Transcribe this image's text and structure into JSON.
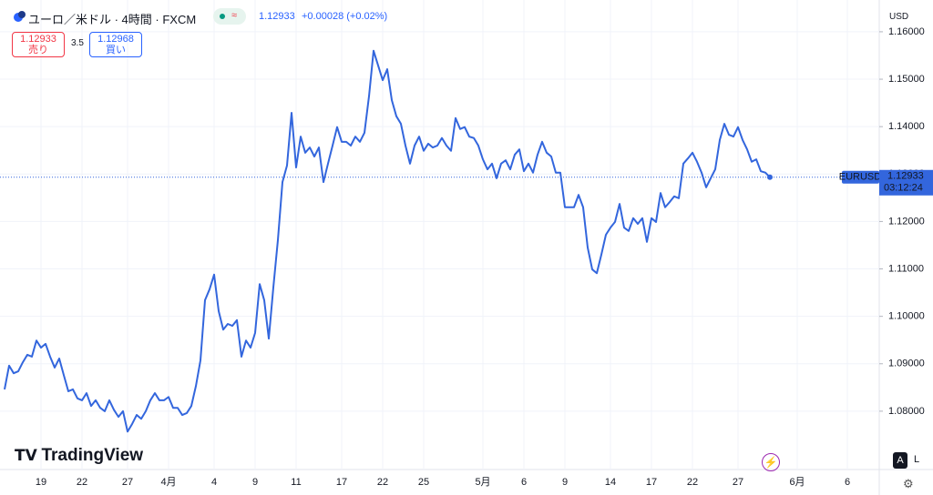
{
  "chart_data": {
    "type": "line",
    "title": "ユーロ／米ドル · 4時間 · FXCM",
    "change": "+0.00028 (+0.02%)",
    "sell_label": "売り",
    "buy_label": "買い",
    "spread": "3.5",
    "ask": 1.12968,
    "currency": "USD",
    "symbol": "EURUSD",
    "countdown": "03:12:24",
    "brand": "TradingView",
    "auto_button": "A",
    "log_button": "L",
    "color": "#3366dd",
    "ylim": [
      1.0677,
      1.1667
    ],
    "yticks": [
      {
        "value": 1.08,
        "label": "1.08000"
      },
      {
        "value": 1.09,
        "label": "1.09000"
      },
      {
        "value": 1.1,
        "label": "1.10000"
      },
      {
        "value": 1.11,
        "label": "1.11000"
      },
      {
        "value": 1.12,
        "label": "1.12000"
      },
      {
        "value": 1.13,
        "label": "1.13000"
      },
      {
        "value": 1.14,
        "label": "1.14000"
      },
      {
        "value": 1.15,
        "label": "1.15000"
      },
      {
        "value": 1.16,
        "label": "1.16000"
      }
    ],
    "grid": true,
    "categories": [
      null,
      null,
      null,
      null,
      null,
      null,
      null,
      null,
      "19",
      null,
      null,
      null,
      null,
      null,
      null,
      null,
      null,
      "22",
      null,
      null,
      null,
      null,
      null,
      null,
      null,
      null,
      null,
      "27",
      null,
      null,
      null,
      null,
      null,
      null,
      null,
      null,
      "4月",
      null,
      null,
      null,
      null,
      null,
      null,
      null,
      null,
      null,
      "4",
      null,
      null,
      null,
      null,
      null,
      null,
      null,
      null,
      "9",
      null,
      null,
      null,
      null,
      null,
      null,
      null,
      null,
      "11",
      null,
      null,
      null,
      null,
      null,
      null,
      null,
      null,
      null,
      "17",
      null,
      null,
      null,
      null,
      null,
      null,
      null,
      null,
      "22",
      null,
      null,
      null,
      null,
      null,
      null,
      null,
      null,
      "25",
      null,
      null,
      null,
      null,
      null,
      null,
      null,
      null,
      null,
      null,
      null,
      null,
      "5月",
      null,
      null,
      null,
      null,
      null,
      null,
      null,
      null,
      "6",
      null,
      null,
      null,
      null,
      null,
      null,
      null,
      null,
      "9",
      null,
      null,
      null,
      null,
      null,
      null,
      null,
      null,
      null,
      "14",
      null,
      null,
      null,
      null,
      null,
      null,
      null,
      null,
      "17",
      null,
      null,
      null,
      null,
      null,
      null,
      null,
      null,
      "22",
      null,
      null,
      null,
      null,
      null,
      null,
      null,
      null,
      null,
      "27",
      null,
      null,
      null,
      null,
      null,
      null,
      null,
      null,
      null,
      null,
      null,
      null,
      "6月",
      null,
      null,
      null,
      null,
      null,
      null,
      null,
      null,
      null,
      null,
      "6",
      null,
      null,
      null,
      null,
      null,
      null,
      null
    ],
    "values": [
      1.0846,
      1.0896,
      1.088,
      1.0884,
      1.0903,
      1.0919,
      1.0915,
      1.0949,
      1.0934,
      1.0942,
      1.0915,
      1.0892,
      1.0911,
      1.0876,
      1.0842,
      1.0846,
      1.0827,
      1.0823,
      1.0838,
      1.0811,
      1.0823,
      1.0807,
      1.08,
      1.0823,
      1.0803,
      1.0788,
      1.08,
      1.0757,
      1.0773,
      1.0792,
      1.0784,
      1.08,
      1.0823,
      1.0838,
      1.0823,
      1.0823,
      1.083,
      1.0807,
      1.0807,
      1.0792,
      1.0796,
      1.0811,
      1.0853,
      1.0907,
      1.1034,
      1.1057,
      1.1088,
      1.1011,
      1.0972,
      1.0984,
      1.098,
      1.0992,
      1.0915,
      1.0949,
      1.0934,
      1.0965,
      1.1068,
      1.1034,
      1.0953,
      1.1061,
      1.1161,
      1.1283,
      1.1318,
      1.1429,
      1.1314,
      1.1379,
      1.1345,
      1.1356,
      1.1337,
      1.1356,
      1.1283,
      1.1322,
      1.136,
      1.1399,
      1.1368,
      1.1368,
      1.136,
      1.1379,
      1.1368,
      1.1387,
      1.1464,
      1.156,
      1.1529,
      1.1498,
      1.1521,
      1.1456,
      1.1422,
      1.1406,
      1.136,
      1.1322,
      1.136,
      1.1379,
      1.1349,
      1.1364,
      1.1356,
      1.136,
      1.1376,
      1.136,
      1.1349,
      1.1418,
      1.1395,
      1.1399,
      1.1379,
      1.1376,
      1.136,
      1.1331,
      1.131,
      1.1322,
      1.1291,
      1.1322,
      1.1329,
      1.131,
      1.1341,
      1.1352,
      1.1306,
      1.1322,
      1.1303,
      1.1341,
      1.1368,
      1.1345,
      1.1337,
      1.1303,
      1.1303,
      1.123,
      1.123,
      1.123,
      1.1256,
      1.123,
      1.1145,
      1.1099,
      1.1091,
      1.113,
      1.1172,
      1.1187,
      1.1199,
      1.1237,
      1.1187,
      1.118,
      1.1207,
      1.1195,
      1.1207,
      1.1157,
      1.1207,
      1.1199,
      1.126,
      1.123,
      1.1241,
      1.1253,
      1.1249,
      1.1322,
      1.1333,
      1.1345,
      1.1326,
      1.1303,
      1.1272,
      1.1291,
      1.131,
      1.1372,
      1.1406,
      1.1383,
      1.1379,
      1.1399,
      1.1372,
      1.1352,
      1.1326,
      1.1331,
      1.1306,
      1.1303,
      1.12933,
      null,
      null,
      null,
      null,
      null,
      null,
      null,
      null,
      null,
      null,
      null,
      null,
      null,
      null,
      null,
      null,
      null,
      null,
      null,
      null,
      null,
      null,
      null,
      null
    ]
  }
}
